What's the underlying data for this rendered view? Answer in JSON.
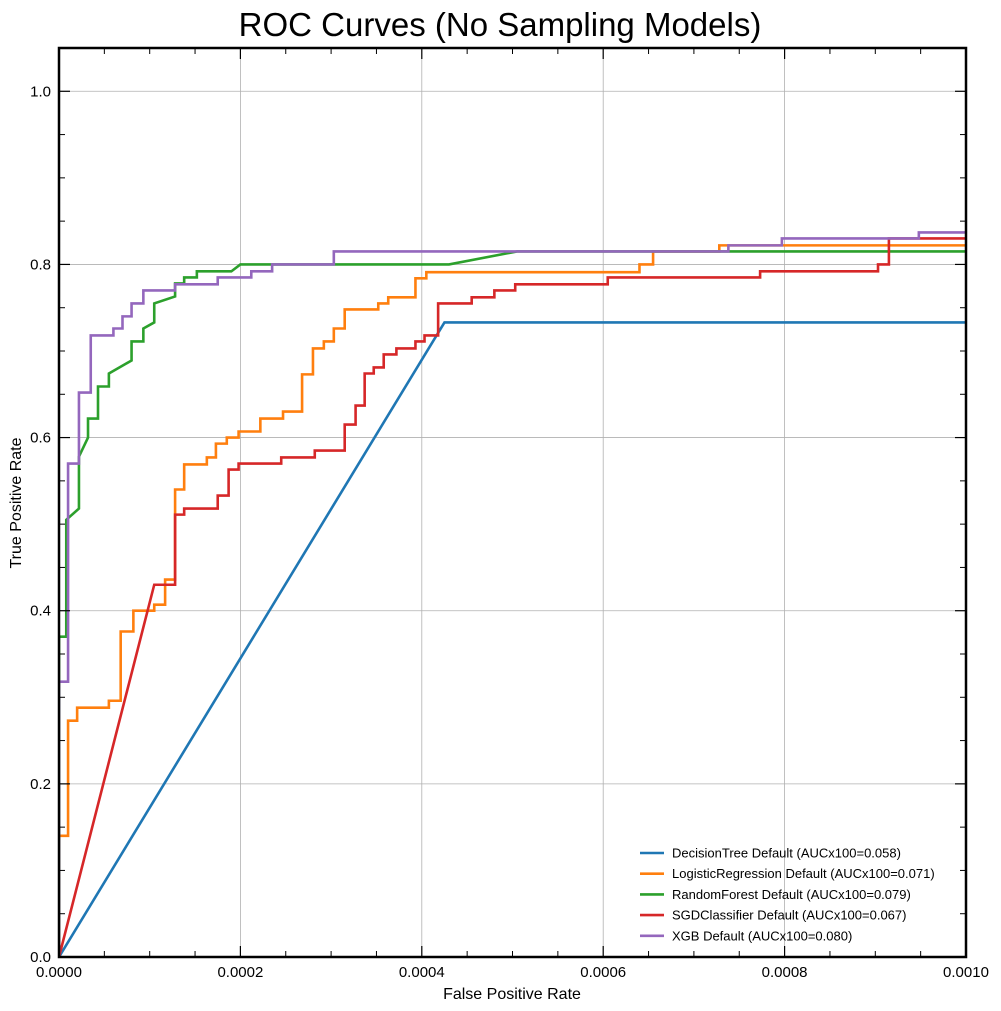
{
  "chart_data": {
    "type": "line",
    "title": "ROC Curves (No Sampling Models)",
    "xlabel": "False Positive Rate",
    "ylabel": "True Positive Rate",
    "xlim": [
      0,
      0.001
    ],
    "ylim": [
      0,
      1.05
    ],
    "xticks": [
      0,
      0.0002,
      0.0004,
      0.0006,
      0.0008,
      0.001
    ],
    "xtick_labels": [
      "0.0000",
      "0.0002",
      "0.0004",
      "0.0006",
      "0.0008",
      "0.0010"
    ],
    "yticks": [
      0,
      0.2,
      0.4,
      0.6,
      0.8,
      1.0
    ],
    "ytick_labels": [
      "0.0",
      "0.2",
      "0.4",
      "0.6",
      "0.8",
      "1.0"
    ],
    "grid": true,
    "legend_position": "lower-right",
    "series": [
      {
        "name": "DecisionTree Default (AUCx100=0.058)",
        "color": "#1f77b4",
        "points": [
          [
            0,
            0
          ],
          [
            0.000425,
            0.733
          ],
          [
            0.001,
            0.733
          ]
        ]
      },
      {
        "name": "LogisticRegression Default (AUCx100=0.071)",
        "color": "#ff7f0e",
        "points": [
          [
            0,
            0
          ],
          [
            0,
            0.14
          ],
          [
            1e-05,
            0.14
          ],
          [
            1e-05,
            0.273
          ],
          [
            2e-05,
            0.273
          ],
          [
            2e-05,
            0.288
          ],
          [
            5.5e-05,
            0.288
          ],
          [
            5.5e-05,
            0.296
          ],
          [
            6.8e-05,
            0.296
          ],
          [
            6.8e-05,
            0.376
          ],
          [
            8.2e-05,
            0.376
          ],
          [
            8.2e-05,
            0.4
          ],
          [
            0.000105,
            0.4
          ],
          [
            0.000105,
            0.407
          ],
          [
            0.000117,
            0.407
          ],
          [
            0.000117,
            0.436
          ],
          [
            0.000128,
            0.436
          ],
          [
            0.000128,
            0.54
          ],
          [
            0.000138,
            0.54
          ],
          [
            0.000138,
            0.569
          ],
          [
            0.000163,
            0.569
          ],
          [
            0.000163,
            0.577
          ],
          [
            0.000173,
            0.577
          ],
          [
            0.000173,
            0.593
          ],
          [
            0.000185,
            0.593
          ],
          [
            0.000185,
            0.6
          ],
          [
            0.000198,
            0.6
          ],
          [
            0.000198,
            0.607
          ],
          [
            0.000222,
            0.607
          ],
          [
            0.000222,
            0.622
          ],
          [
            0.000247,
            0.622
          ],
          [
            0.000247,
            0.63
          ],
          [
            0.000268,
            0.63
          ],
          [
            0.000268,
            0.673
          ],
          [
            0.00028,
            0.673
          ],
          [
            0.00028,
            0.703
          ],
          [
            0.000292,
            0.703
          ],
          [
            0.000292,
            0.711
          ],
          [
            0.000303,
            0.711
          ],
          [
            0.000303,
            0.726
          ],
          [
            0.000315,
            0.726
          ],
          [
            0.000315,
            0.748
          ],
          [
            0.000352,
            0.748
          ],
          [
            0.000352,
            0.755
          ],
          [
            0.000363,
            0.755
          ],
          [
            0.000363,
            0.762
          ],
          [
            0.000393,
            0.762
          ],
          [
            0.000393,
            0.784
          ],
          [
            0.000405,
            0.784
          ],
          [
            0.000405,
            0.791
          ],
          [
            0.00064,
            0.791
          ],
          [
            0.00064,
            0.8
          ],
          [
            0.000655,
            0.8
          ],
          [
            0.000655,
            0.815
          ],
          [
            0.000728,
            0.815
          ],
          [
            0.000728,
            0.822
          ],
          [
            0.001,
            0.822
          ]
        ]
      },
      {
        "name": "RandomForest Default (AUCx100=0.079)",
        "color": "#2ca02c",
        "points": [
          [
            0,
            0
          ],
          [
            0,
            0.37
          ],
          [
            8e-06,
            0.37
          ],
          [
            8e-06,
            0.505
          ],
          [
            2.2e-05,
            0.518
          ],
          [
            2.2e-05,
            0.578
          ],
          [
            3.2e-05,
            0.6
          ],
          [
            3.2e-05,
            0.622
          ],
          [
            4.3e-05,
            0.622
          ],
          [
            4.3e-05,
            0.659
          ],
          [
            5.5e-05,
            0.659
          ],
          [
            5.5e-05,
            0.674
          ],
          [
            8e-05,
            0.689
          ],
          [
            8e-05,
            0.711
          ],
          [
            9.3e-05,
            0.711
          ],
          [
            9.3e-05,
            0.726
          ],
          [
            0.000105,
            0.733
          ],
          [
            0.000105,
            0.755
          ],
          [
            0.000128,
            0.763
          ],
          [
            0.000128,
            0.778
          ],
          [
            0.000138,
            0.778
          ],
          [
            0.000138,
            0.785
          ],
          [
            0.000152,
            0.785
          ],
          [
            0.000152,
            0.792
          ],
          [
            0.00019,
            0.792
          ],
          [
            0.0002,
            0.8
          ],
          [
            0.00043,
            0.8
          ],
          [
            0.000505,
            0.815
          ],
          [
            0.001,
            0.815
          ]
        ]
      },
      {
        "name": "SGDClassifier Default (AUCx100=0.067)",
        "color": "#d62728",
        "points": [
          [
            0,
            0
          ],
          [
            0.000105,
            0.43
          ],
          [
            0.000128,
            0.43
          ],
          [
            0.000128,
            0.511
          ],
          [
            0.000138,
            0.511
          ],
          [
            0.000138,
            0.518
          ],
          [
            0.000175,
            0.518
          ],
          [
            0.000175,
            0.533
          ],
          [
            0.000187,
            0.533
          ],
          [
            0.000187,
            0.563
          ],
          [
            0.000198,
            0.563
          ],
          [
            0.000198,
            0.57
          ],
          [
            0.000245,
            0.57
          ],
          [
            0.000245,
            0.577
          ],
          [
            0.000282,
            0.577
          ],
          [
            0.000282,
            0.585
          ],
          [
            0.000315,
            0.585
          ],
          [
            0.000315,
            0.615
          ],
          [
            0.000327,
            0.615
          ],
          [
            0.000327,
            0.637
          ],
          [
            0.000337,
            0.637
          ],
          [
            0.000337,
            0.674
          ],
          [
            0.000347,
            0.674
          ],
          [
            0.000347,
            0.681
          ],
          [
            0.000358,
            0.681
          ],
          [
            0.000358,
            0.696
          ],
          [
            0.000372,
            0.696
          ],
          [
            0.000372,
            0.703
          ],
          [
            0.000393,
            0.703
          ],
          [
            0.000393,
            0.711
          ],
          [
            0.000403,
            0.711
          ],
          [
            0.000403,
            0.718
          ],
          [
            0.000418,
            0.718
          ],
          [
            0.000418,
            0.755
          ],
          [
            0.000455,
            0.755
          ],
          [
            0.000455,
            0.762
          ],
          [
            0.00048,
            0.762
          ],
          [
            0.00048,
            0.77
          ],
          [
            0.000503,
            0.77
          ],
          [
            0.000503,
            0.777
          ],
          [
            0.000605,
            0.777
          ],
          [
            0.000605,
            0.785
          ],
          [
            0.000773,
            0.785
          ],
          [
            0.000773,
            0.792
          ],
          [
            0.000903,
            0.792
          ],
          [
            0.000903,
            0.8
          ],
          [
            0.000915,
            0.8
          ],
          [
            0.000915,
            0.83
          ],
          [
            0.001,
            0.83
          ]
        ]
      },
      {
        "name": "XGB Default (AUCx100=0.080)",
        "color": "#9467bd",
        "points": [
          [
            0,
            0
          ],
          [
            0,
            0.318
          ],
          [
            1e-05,
            0.318
          ],
          [
            1e-05,
            0.57
          ],
          [
            2.2e-05,
            0.57
          ],
          [
            2.2e-05,
            0.652
          ],
          [
            3.5e-05,
            0.652
          ],
          [
            3.5e-05,
            0.718
          ],
          [
            6e-05,
            0.718
          ],
          [
            6e-05,
            0.726
          ],
          [
            7e-05,
            0.726
          ],
          [
            7e-05,
            0.74
          ],
          [
            8e-05,
            0.74
          ],
          [
            8e-05,
            0.755
          ],
          [
            9.3e-05,
            0.755
          ],
          [
            9.3e-05,
            0.77
          ],
          [
            0.000128,
            0.77
          ],
          [
            0.000128,
            0.777
          ],
          [
            0.000175,
            0.777
          ],
          [
            0.000175,
            0.785
          ],
          [
            0.000212,
            0.785
          ],
          [
            0.000212,
            0.792
          ],
          [
            0.000235,
            0.792
          ],
          [
            0.000235,
            0.8
          ],
          [
            0.000303,
            0.8
          ],
          [
            0.000303,
            0.815
          ],
          [
            0.000738,
            0.815
          ],
          [
            0.000738,
            0.822
          ],
          [
            0.000797,
            0.822
          ],
          [
            0.000797,
            0.83
          ],
          [
            0.000948,
            0.83
          ],
          [
            0.000948,
            0.837
          ],
          [
            0.001,
            0.837
          ]
        ]
      }
    ]
  }
}
